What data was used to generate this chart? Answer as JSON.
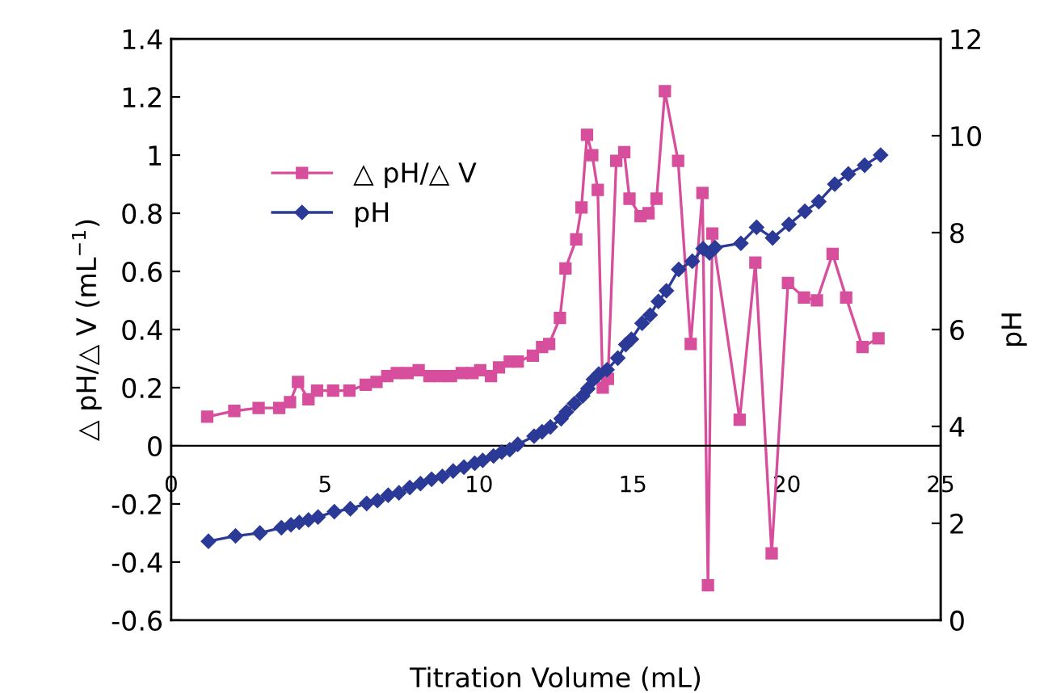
{
  "chart_data": {
    "type": "line",
    "xlabel": "Titration Volume (mL)",
    "ylabel": "△ pH/△ V (mL$^{−1}$)",
    "y2label": "pH",
    "xlim": [
      0,
      25
    ],
    "xticks": [
      0,
      5,
      10,
      15,
      20,
      25
    ],
    "ylim": [
      -0.6,
      1.4
    ],
    "yticks": [
      -0.6,
      -0.4,
      -0.2,
      0,
      0.2,
      0.4,
      0.6,
      0.8,
      1,
      1.2,
      1.4
    ],
    "y2lim": [
      0,
      12
    ],
    "y2ticks": [
      0,
      2,
      4,
      6,
      8,
      10,
      12
    ],
    "grid": false,
    "legend": "top left",
    "line_style": "solid",
    "series": [
      {
        "name": "△ pH/△ V",
        "color": "#d64e9c",
        "marker": "square",
        "x": [
          1.17,
          2.05,
          2.84,
          3.51,
          3.86,
          4.12,
          4.46,
          4.74,
          5.26,
          5.79,
          6.32,
          6.67,
          7.02,
          7.33,
          7.68,
          8.04,
          8.39,
          8.74,
          9.09,
          9.44,
          9.79,
          10.04,
          10.39,
          10.65,
          11.0,
          11.26,
          11.75,
          12.05,
          12.28,
          12.63,
          12.81,
          13.16,
          13.33,
          13.51,
          13.68,
          13.86,
          14.02,
          14.19,
          14.46,
          14.72,
          14.89,
          15.25,
          15.51,
          15.77,
          16.04,
          16.47,
          16.88,
          17.26,
          17.44,
          17.58,
          18.47,
          18.98,
          19.51,
          20.04,
          20.56,
          20.98,
          21.49,
          21.93,
          22.46,
          22.98
        ],
        "values": [
          0.1,
          0.12,
          0.13,
          0.13,
          0.15,
          0.22,
          0.16,
          0.19,
          0.19,
          0.19,
          0.21,
          0.22,
          0.24,
          0.25,
          0.25,
          0.26,
          0.24,
          0.24,
          0.24,
          0.25,
          0.25,
          0.26,
          0.24,
          0.27,
          0.29,
          0.29,
          0.31,
          0.34,
          0.35,
          0.44,
          0.61,
          0.71,
          0.82,
          1.07,
          1.0,
          0.88,
          0.2,
          0.23,
          0.98,
          1.01,
          0.85,
          0.79,
          0.8,
          0.85,
          1.22,
          0.98,
          0.35,
          0.87,
          -0.48,
          0.73,
          0.09,
          0.63,
          -0.37,
          0.56,
          0.51,
          0.5,
          0.66,
          0.51,
          0.34,
          0.37
        ]
      },
      {
        "name": "pH",
        "color": "#2b3a96",
        "marker": "diamond",
        "axis": "y2",
        "x": [
          1.21,
          2.09,
          2.88,
          3.58,
          3.89,
          4.16,
          4.46,
          4.77,
          5.3,
          5.82,
          6.35,
          6.7,
          7.05,
          7.4,
          7.75,
          8.1,
          8.46,
          8.81,
          9.16,
          9.51,
          9.86,
          10.12,
          10.47,
          10.74,
          11.0,
          11.26,
          11.79,
          12.05,
          12.32,
          12.67,
          12.84,
          13.1,
          13.37,
          13.54,
          13.72,
          13.89,
          14.16,
          14.51,
          14.77,
          14.95,
          15.3,
          15.56,
          15.83,
          16.09,
          16.49,
          16.93,
          17.28,
          17.49,
          17.67,
          18.51,
          19.02,
          19.54,
          20.07,
          20.59,
          21.04,
          21.56,
          22.0,
          22.53,
          23.05
        ],
        "values": [
          1.63,
          1.74,
          1.8,
          1.91,
          1.97,
          2.02,
          2.07,
          2.13,
          2.24,
          2.3,
          2.41,
          2.47,
          2.58,
          2.63,
          2.74,
          2.82,
          2.91,
          2.97,
          3.08,
          3.16,
          3.24,
          3.3,
          3.39,
          3.47,
          3.52,
          3.63,
          3.8,
          3.89,
          3.99,
          4.16,
          4.3,
          4.47,
          4.63,
          4.78,
          4.97,
          5.08,
          5.17,
          5.41,
          5.69,
          5.8,
          6.13,
          6.3,
          6.58,
          6.8,
          7.24,
          7.41,
          7.67,
          7.58,
          7.69,
          7.78,
          8.11,
          7.89,
          8.17,
          8.44,
          8.64,
          9.0,
          9.21,
          9.39,
          9.6
        ]
      }
    ]
  }
}
